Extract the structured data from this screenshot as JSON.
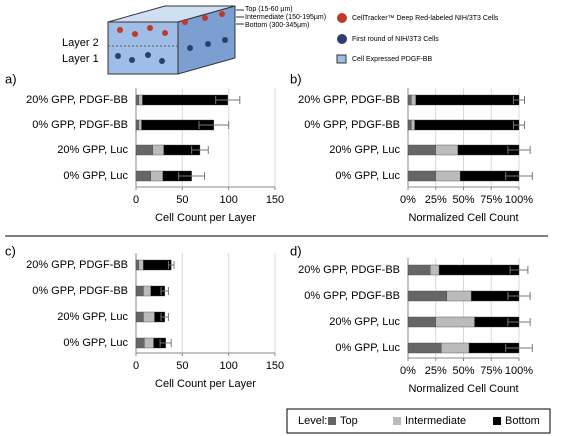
{
  "diagram": {
    "depths": [
      "Top (15-60 µm)",
      "Intermediate (150-195µm)",
      "Bottom (300-345µm)"
    ],
    "layers": [
      "Layer 2",
      "Layer 1"
    ],
    "key": [
      "CellTracker™ Deep Red-labeled NIH/3T3 Cells",
      "First round of NIH/3T3 Cells",
      "Cell Expressed  PDGF-BB"
    ]
  },
  "legend": {
    "title": "Level:",
    "items": [
      {
        "name": "Top",
        "color": "#666666"
      },
      {
        "name": "Intermediate",
        "color": "#bbbbbb"
      },
      {
        "name": "Bottom",
        "color": "#000000"
      }
    ]
  },
  "chart_data": [
    {
      "type": "bar",
      "panel_label": "a)",
      "orientation": "horizontal",
      "stacked": true,
      "categories": [
        "20% GPP, PDGF-BB",
        "0% GPP, PDGF-BB",
        "20% GPP, Luc",
        "0% GPP, Luc"
      ],
      "series": [
        {
          "values": [
            3,
            3,
            18,
            16
          ]
        },
        {
          "values": [
            4,
            3,
            12,
            13
          ]
        },
        {
          "values": [
            92,
            78,
            39,
            31
          ]
        }
      ],
      "errors": [
        13,
        16,
        9,
        14
      ],
      "xlim": [
        0,
        150
      ],
      "xticks": [
        0,
        50,
        100,
        150
      ],
      "xlabel": "Cell Count per Layer",
      "grid": true
    },
    {
      "type": "bar",
      "panel_label": "b)",
      "orientation": "horizontal",
      "stacked": true,
      "categories": [
        "20% GPP, PDGF-BB",
        "0% GPP, PDGF-BB",
        "20% GPP, Luc",
        "0% GPP, Luc"
      ],
      "series": [
        {
          "values": [
            3,
            3,
            25,
            25
          ]
        },
        {
          "values": [
            4,
            3,
            20,
            22
          ]
        },
        {
          "values": [
            93,
            94,
            55,
            53
          ]
        }
      ],
      "errors": [
        5,
        5,
        10,
        12
      ],
      "xlim": [
        0,
        100
      ],
      "xticks": [
        {
          "value": 0,
          "label": "0%"
        },
        {
          "value": 25,
          "label": "25%"
        },
        {
          "value": 50,
          "label": "50%"
        },
        {
          "value": 75,
          "label": "75%"
        },
        {
          "value": 100,
          "label": "100%"
        }
      ],
      "xlabel": "Normalized Cell Count",
      "grid": true
    },
    {
      "type": "bar",
      "panel_label": "c)",
      "orientation": "horizontal",
      "stacked": true,
      "categories": [
        "20% GPP, PDGF-BB",
        "0% GPP, PDGF-BB",
        "20% GPP, Luc",
        "0% GPP, Luc"
      ],
      "series": [
        {
          "values": [
            3,
            8,
            8,
            9
          ]
        },
        {
          "values": [
            5,
            8,
            12,
            10
          ]
        },
        {
          "values": [
            30,
            15,
            11,
            13
          ]
        }
      ],
      "errors": [
        3,
        4,
        4,
        6
      ],
      "xlim": [
        0,
        150
      ],
      "xticks": [
        0,
        50,
        100,
        150
      ],
      "xlabel": "Cell Count per Layer",
      "grid": true
    },
    {
      "type": "bar",
      "panel_label": "d)",
      "orientation": "horizontal",
      "stacked": true,
      "categories": [
        "20% GPP, PDGF-BB",
        "0% GPP, PDGF-BB",
        "20% GPP, Luc",
        "0% GPP, Luc"
      ],
      "series": [
        {
          "values": [
            20,
            35,
            25,
            30
          ]
        },
        {
          "values": [
            8,
            22,
            35,
            25
          ]
        },
        {
          "values": [
            72,
            43,
            40,
            45
          ]
        }
      ],
      "errors": [
        8,
        10,
        10,
        12
      ],
      "xlim": [
        0,
        100
      ],
      "xticks": [
        {
          "value": 0,
          "label": "0%"
        },
        {
          "value": 25,
          "label": "25%"
        },
        {
          "value": 50,
          "label": "50%"
        },
        {
          "value": 75,
          "label": "75%"
        },
        {
          "value": 100,
          "label": "100%"
        }
      ],
      "xlabel": "Normalized Cell Count",
      "grid": true
    }
  ]
}
